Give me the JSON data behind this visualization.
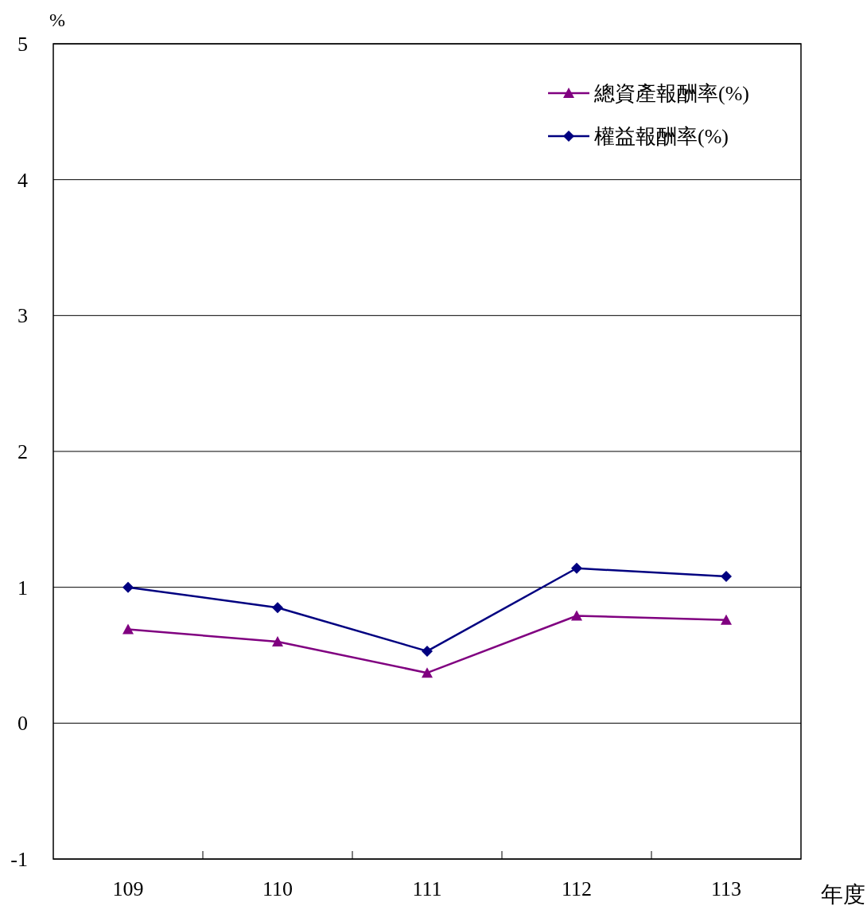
{
  "chart_data": {
    "type": "line",
    "ylabel": "%",
    "xlabel": "年度",
    "categories": [
      "109",
      "110",
      "111",
      "112",
      "113"
    ],
    "ylim": [
      -1,
      5
    ],
    "yticks": [
      -1,
      0,
      1,
      2,
      3,
      4,
      5
    ],
    "grid": "y",
    "legend": "top right",
    "line_style": "solid",
    "series": [
      {
        "name": "總資產報酬率(%)",
        "color": "#800080",
        "marker": "triangle",
        "values": [
          0.69,
          0.6,
          0.37,
          0.79,
          0.76
        ]
      },
      {
        "name": "權益報酬率(%)",
        "color": "#000080",
        "marker": "diamond",
        "values": [
          1.0,
          0.85,
          0.53,
          1.14,
          1.08
        ]
      }
    ]
  }
}
